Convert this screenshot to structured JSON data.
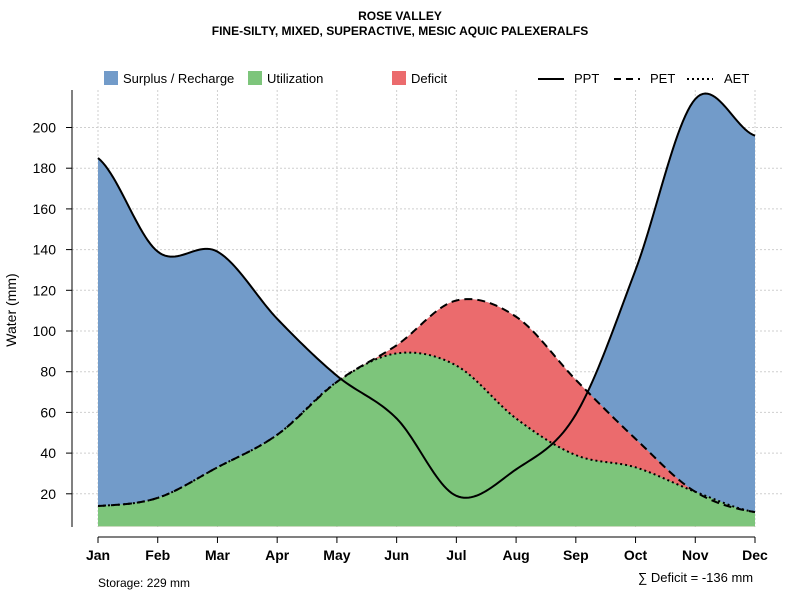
{
  "chart_data": {
    "type": "area",
    "title": "ROSE VALLEY",
    "subtitle": "FINE-SILTY, MIXED, SUPERACTIVE, MESIC AQUIC PALEXERALFS",
    "xlabel": "",
    "ylabel": "Water (mm)",
    "categories": [
      "Jan",
      "Feb",
      "Mar",
      "Apr",
      "May",
      "Jun",
      "Jul",
      "Aug",
      "Sep",
      "Oct",
      "Nov",
      "Dec"
    ],
    "y_ticks": [
      20,
      40,
      60,
      80,
      100,
      120,
      140,
      160,
      180,
      200
    ],
    "ylim": [
      0,
      217
    ],
    "grid": true,
    "series": [
      {
        "name": "PPT",
        "line": "solid",
        "values": [
          185,
          139,
          139,
          106,
          78,
          57,
          19,
          32,
          59,
          130,
          214,
          196
        ]
      },
      {
        "name": "PET",
        "line": "dashed",
        "values": [
          14,
          18,
          33,
          49,
          75,
          93,
          115,
          107,
          76,
          47,
          21,
          11
        ]
      },
      {
        "name": "AET",
        "line": "dotted",
        "values": [
          14,
          18,
          33,
          49,
          75,
          89,
          83,
          57,
          39,
          33,
          21,
          11
        ]
      }
    ],
    "areas": [
      {
        "name": "Surplus / Recharge",
        "color": "#729BC9"
      },
      {
        "name": "Utilization",
        "color": "#7DC57B"
      },
      {
        "name": "Deficit",
        "color": "#EB6B6D"
      }
    ],
    "legend_position": "top",
    "storage_label": "Storage: 229 mm",
    "deficit_label": "∑ Deficit = -136 mm"
  }
}
